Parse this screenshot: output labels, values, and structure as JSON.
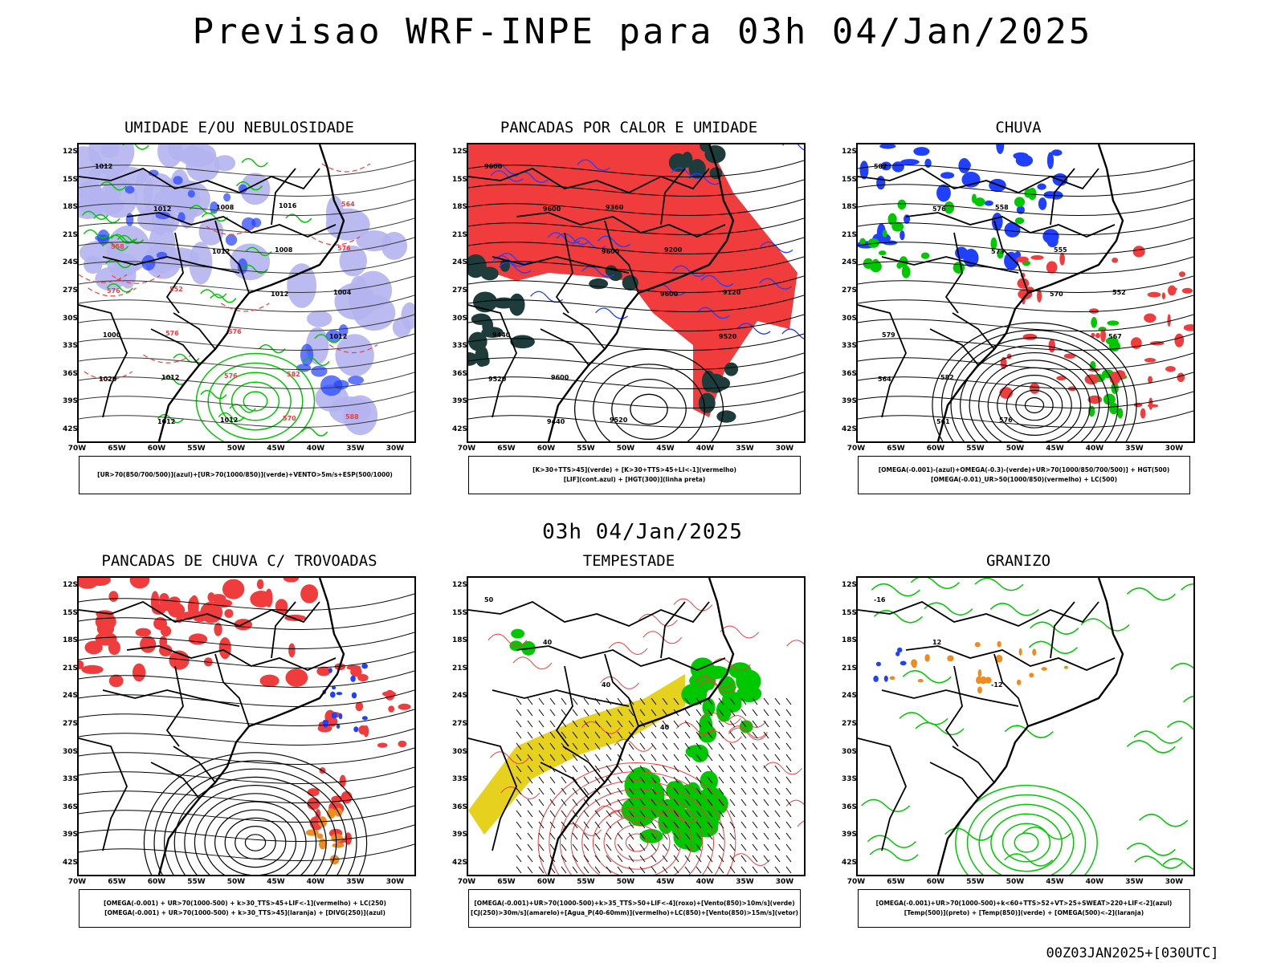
{
  "title": "Previsao WRF-INPE  para 03h 04/Jan/2025",
  "mid_date": "03h 04/Jan/2025",
  "footer": "00Z03JAN2025+[030UTC]",
  "lat_labels": [
    "12S",
    "15S",
    "18S",
    "21S",
    "24S",
    "27S",
    "30S",
    "33S",
    "36S",
    "39S",
    "42S"
  ],
  "lon_labels": [
    "70W",
    "65W",
    "60W",
    "55W",
    "50W",
    "45W",
    "40W",
    "35W",
    "30W"
  ],
  "colors": {
    "blue": "#2040ff",
    "lavender": "#b4b4f0",
    "green": "#00c800",
    "red": "#f03c3c",
    "dark_teal": "#1e3c3c",
    "yellow": "#e6d21e",
    "orange": "#f08c1e",
    "magenta": "#c83cc8",
    "black": "#000000"
  },
  "panels": [
    {
      "title": "UMIDADE E/OU NEBULOSIDADE",
      "legend": [
        "[UR>70(850/700/500)](azul)+[UR>70(1000/850)](verde)+VENTO>5m/s+ESP(500/1000)"
      ],
      "labels": [
        "1012",
        "1012",
        "1012",
        "1012",
        "1012",
        "1020",
        "1012",
        "1008",
        "1008",
        "1004",
        "1000",
        "1012",
        "1012",
        "1016",
        "576",
        "576",
        "576",
        "576",
        "570",
        "564",
        "558",
        "552",
        "576",
        "582",
        "588"
      ]
    },
    {
      "title": "PANCADAS POR CALOR E UMIDADE",
      "legend": [
        "[K>30+TTS>45](verde) + [K>30+TTS>45+LI<-1](vermelho)",
        "[LIF](cont.azul) + [HGT(300)](linha preta)"
      ],
      "labels": [
        "9600",
        "9600",
        "9600",
        "9600",
        "9520",
        "9520",
        "9440",
        "9360",
        "9200",
        "9120",
        "9440",
        "9600",
        "9520"
      ]
    },
    {
      "title": "CHUVA",
      "legend": [
        "[OMEGA(-0.001)-(azul)+OMEGA(-0.3)-(verde)+UR>70(1000/850/700/500)] + HGT(500)",
        "[OMEGA(-0.01)_UR>50(1000/850)(vermelho) + LC(500)"
      ],
      "labels": [
        "582",
        "576",
        "573",
        "570",
        "567",
        "564",
        "561",
        "558",
        "555",
        "552",
        "579",
        "582",
        "576"
      ]
    },
    {
      "title": "PANCADAS DE CHUVA C/ TROVOADAS",
      "legend": [
        "[OMEGA(-0.001) + UR>70(1000-500) + k>30_TTS>45+LIF<-1](vermelho) + LC(250)",
        "[OMEGA(-0.001) + UR>70(1000-500) + k>30_TTS>45](laranja) + [DIVG(250)](azul)"
      ],
      "labels": []
    },
    {
      "title": "TEMPESTADE",
      "legend": [
        "[OMEGA(-0.001)+UR>70(1000-500)+k>35_TTS>50+LIF<-4](roxo)+[Vento(850)>10m/s](verde)",
        "[CJ(250)>30m/s](amarelo)+[Agua_P(40-60mm)](vermelho)+LC(850)+[Vento(850)>15m/s](vetor)"
      ],
      "labels": [
        "50",
        "40",
        "40",
        "40"
      ]
    },
    {
      "title": "GRANIZO",
      "legend": [
        "[OMEGA(-0.001)+UR>70(1000-500)+k<60+TTS>52+VT>25+SWEAT>220+LIF<-2](azul)",
        "[Temp(500)](preto) + [Temp(850)](verde) + [OMEGA(500)<-2](laranja)"
      ],
      "labels": [
        "-16",
        "12",
        "-12"
      ]
    }
  ]
}
